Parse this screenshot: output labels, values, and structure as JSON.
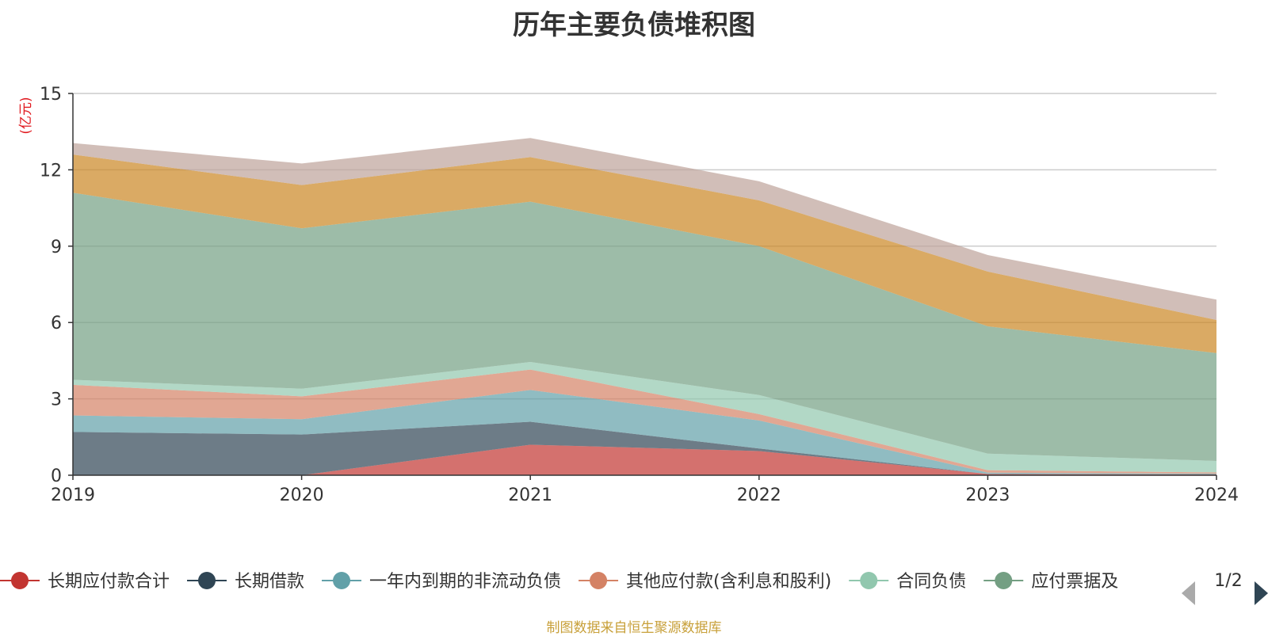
{
  "chart_data": {
    "type": "area",
    "stacked": true,
    "title": "历年主要负债堆积图",
    "ylabel": "(亿元)",
    "xlabel": "",
    "categories": [
      "2019",
      "2020",
      "2021",
      "2022",
      "2023",
      "2024"
    ],
    "ylim": [
      0,
      15
    ],
    "yticks": [
      0,
      3,
      6,
      9,
      12,
      15
    ],
    "grid": true,
    "legend_position": "bottom",
    "series": [
      {
        "name": "长期应付款合计",
        "color": "#c23531",
        "values": [
          0.0,
          0.0,
          1.2,
          0.95,
          0.05,
          0.03
        ]
      },
      {
        "name": "长期借款",
        "color": "#2f4554",
        "values": [
          1.7,
          1.6,
          0.9,
          0.1,
          0.0,
          0.0
        ]
      },
      {
        "name": "一年内到期的非流动负债",
        "color": "#61a0a8",
        "values": [
          0.65,
          0.6,
          1.25,
          1.1,
          0.05,
          0.03
        ]
      },
      {
        "name": "其他应付款(含利息和股利)",
        "color": "#d48265",
        "values": [
          1.2,
          0.9,
          0.8,
          0.25,
          0.1,
          0.05
        ]
      },
      {
        "name": "合同负债",
        "color": "#91c7ae",
        "values": [
          0.2,
          0.3,
          0.3,
          0.75,
          0.65,
          0.45
        ]
      },
      {
        "name": "应付票据及应付账款",
        "color": "#749f83",
        "values": [
          7.35,
          6.3,
          6.3,
          5.85,
          5.0,
          4.24
        ]
      },
      {
        "name": "",
        "color": "#ca8622",
        "values": [
          1.5,
          1.7,
          1.75,
          1.8,
          2.15,
          1.3
        ]
      },
      {
        "name": "",
        "color": "#bda29a",
        "values": [
          0.45,
          0.85,
          0.75,
          0.75,
          0.65,
          0.8
        ]
      }
    ]
  },
  "legend": {
    "visible": [
      "长期应付款合计",
      "长期借款",
      "一年内到期的非流动负债",
      "其他应付款(含利息和股利)",
      "合同负债",
      "应付票据及"
    ],
    "page": "1/2"
  },
  "source": "制图数据来自恒生聚源数据库"
}
